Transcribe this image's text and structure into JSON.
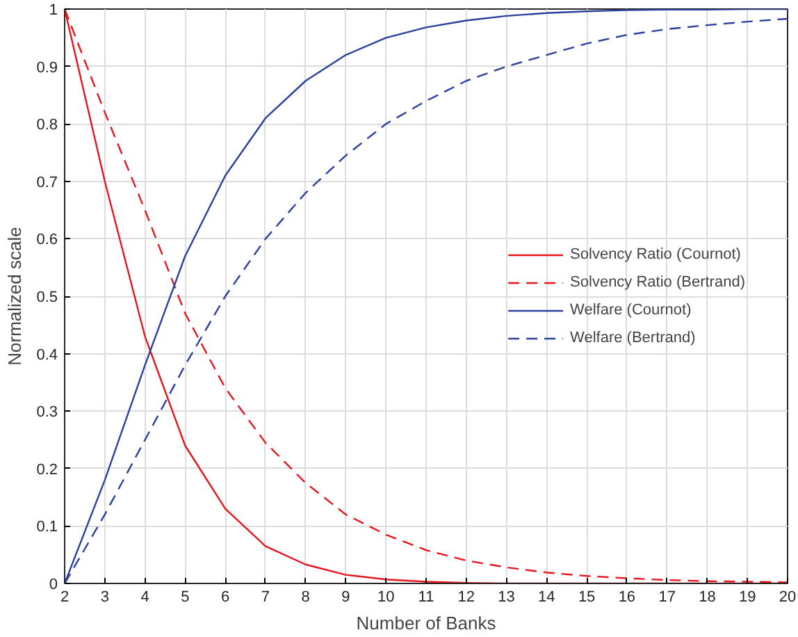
{
  "chart_data": {
    "type": "line",
    "xlabel": "Number of Banks",
    "ylabel": "Normalized scale",
    "x": [
      2,
      3,
      4,
      5,
      6,
      7,
      8,
      9,
      10,
      11,
      12,
      13,
      14,
      15,
      16,
      17,
      18,
      19,
      20
    ],
    "series": [
      {
        "name": "Solvency Ratio (Cournot)",
        "color": "#e8141c",
        "line_style": "solid",
        "values": [
          1,
          0.7,
          0.43,
          0.24,
          0.13,
          0.065,
          0.033,
          0.015,
          0.007,
          0.003,
          0.001,
          0,
          0,
          0,
          0,
          0,
          0,
          0,
          0
        ]
      },
      {
        "name": "Solvency Ratio (Bertrand)",
        "color": "#e8141c",
        "line_style": "dashed",
        "values": [
          1,
          0.82,
          0.65,
          0.47,
          0.34,
          0.245,
          0.175,
          0.12,
          0.085,
          0.058,
          0.04,
          0.028,
          0.019,
          0.013,
          0.009,
          0.006,
          0.004,
          0.003,
          0.002
        ]
      },
      {
        "name": "Welfare (Cournot)",
        "color": "#2b3f9e",
        "line_style": "solid",
        "values": [
          0,
          0.18,
          0.38,
          0.57,
          0.71,
          0.81,
          0.875,
          0.92,
          0.95,
          0.968,
          0.98,
          0.988,
          0.993,
          0.996,
          0.998,
          0.999,
          0.999,
          1,
          1
        ]
      },
      {
        "name": "Welfare (Bertrand)",
        "color": "#2b3f9e",
        "line_style": "dashed",
        "values": [
          0,
          0.12,
          0.25,
          0.38,
          0.5,
          0.6,
          0.68,
          0.745,
          0.8,
          0.84,
          0.875,
          0.9,
          0.92,
          0.94,
          0.955,
          0.965,
          0.972,
          0.978,
          0.983
        ]
      }
    ],
    "xlim": [
      2,
      20
    ],
    "ylim": [
      0,
      1
    ],
    "xticks": [
      2,
      3,
      4,
      5,
      6,
      7,
      8,
      9,
      10,
      11,
      12,
      13,
      14,
      15,
      16,
      17,
      18,
      19,
      20
    ],
    "yticks": [
      0,
      {
        "value": 0.1,
        "label": "0.1"
      },
      {
        "value": 0.2,
        "label": "0.2"
      },
      {
        "value": 0.3,
        "label": "0.3"
      },
      {
        "value": 0.4,
        "label": "0.4"
      },
      {
        "value": 0.5,
        "label": "0.5"
      },
      {
        "value": 0.6,
        "label": "0.6"
      },
      {
        "value": 0.7,
        "label": "0.7"
      },
      {
        "value": 0.8,
        "label": "0.8"
      },
      {
        "value": 0.9,
        "label": "0.9"
      },
      1
    ],
    "grid": true,
    "legend": "right",
    "marker": "none"
  }
}
